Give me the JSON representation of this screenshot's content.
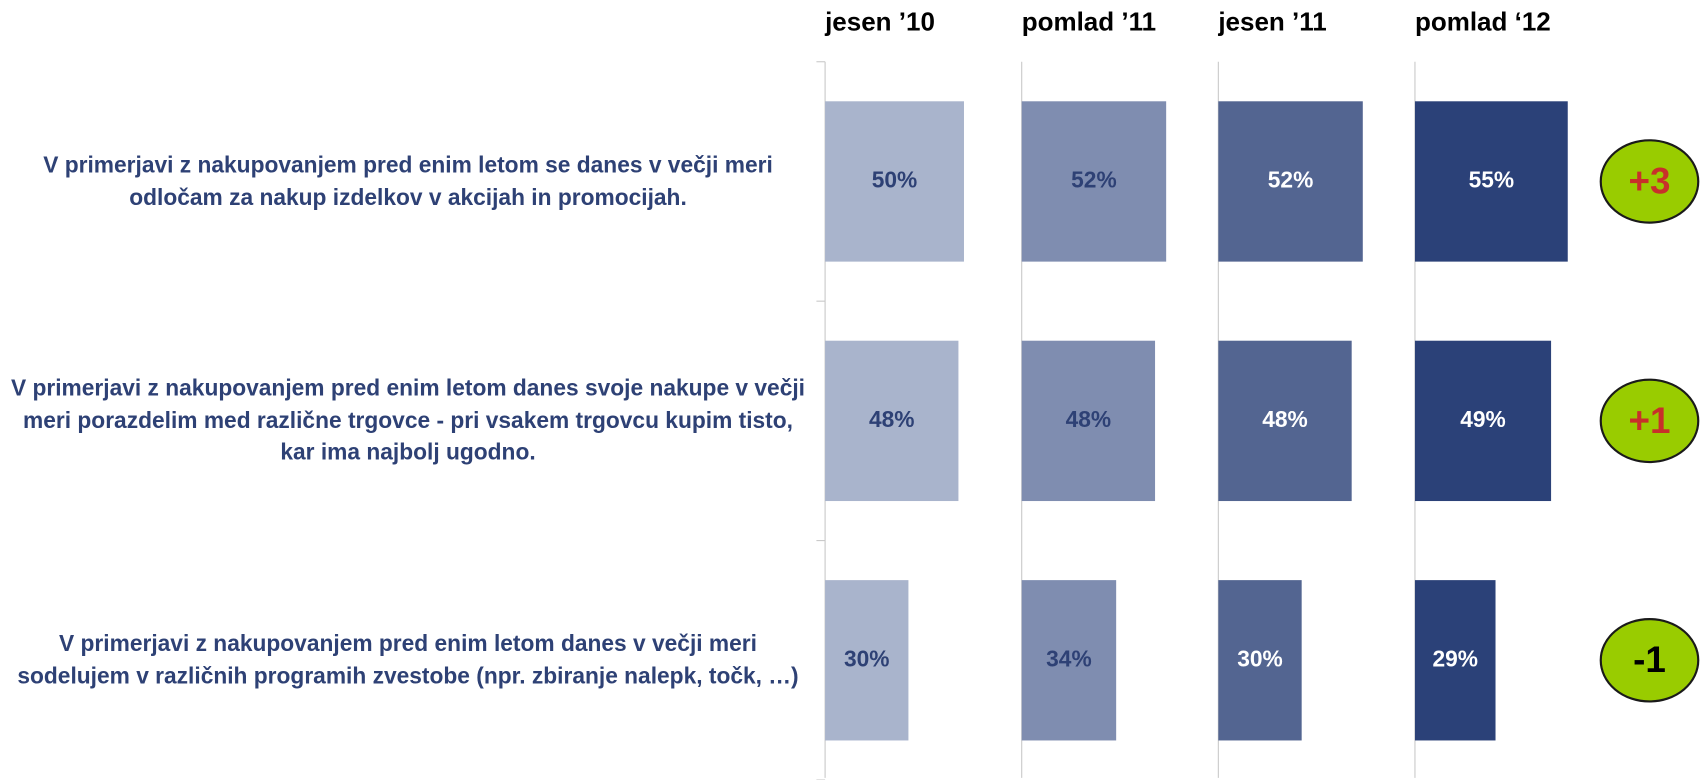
{
  "chart_data": {
    "type": "bar",
    "orientation": "horizontal",
    "categories": [
      "V primerjavi z nakupovanjem pred enim letom se danes v večji meri odločam za nakup izdelkov v akcijah in promocijah.",
      "V primerjavi z nakupovanjem pred enim letom danes svoje nakupe v večji meri porazdelim med različne trgovce - pri vsakem trgovcu kupim tisto, kar ima najbolj ugodno.",
      "V primerjavi z nakupovanjem pred enim letom danes v večji meri sodelujem v različnih programih zvestobe (npr. zbiranje nalepk, točk, …)"
    ],
    "series": [
      {
        "name": "jesen ’10",
        "color": "#a9b4cc",
        "label_color": "#2e4175",
        "values": [
          50,
          48,
          30
        ],
        "value_labels": [
          "50%",
          "48%",
          "30%"
        ]
      },
      {
        "name": "pomlad ’11",
        "color": "#7f8db0",
        "label_color": "#2e4175",
        "values": [
          52,
          48,
          34
        ],
        "value_labels": [
          "52%",
          "48%",
          "34%"
        ]
      },
      {
        "name": "jesen ’11",
        "color": "#536591",
        "label_color": "#ffffff",
        "values": [
          52,
          48,
          30
        ],
        "value_labels": [
          "52%",
          "48%",
          "30%"
        ]
      },
      {
        "name": "pomlad ‘12",
        "color": "#2b4178",
        "label_color": "#ffffff",
        "values": [
          55,
          49,
          29
        ],
        "value_labels": [
          "55%",
          "49%",
          "29%"
        ]
      }
    ],
    "xlim": [
      0,
      70
    ],
    "annotations": [
      {
        "text": "+3",
        "color": "#c8302a"
      },
      {
        "text": "+1",
        "color": "#c8302a"
      },
      {
        "text": "-1",
        "color": "#000000"
      }
    ],
    "annotation_fill": "#99cc00"
  }
}
